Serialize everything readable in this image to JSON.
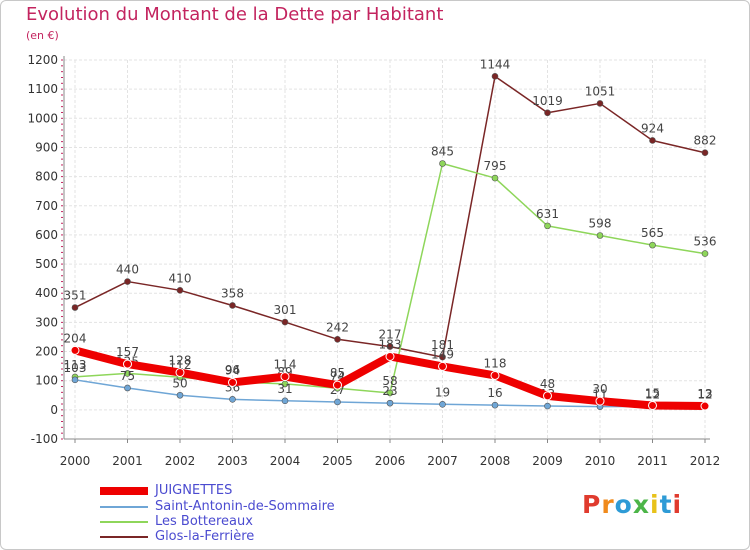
{
  "header": {
    "title": "Evolution du Montant de la Dette par Habitant",
    "unit": "(en €)"
  },
  "logo": {
    "text": "Proxiti",
    "colors": [
      "#e03b2e",
      "#f08a1c",
      "#2e9bd6",
      "#4cb548",
      "#e8c21a",
      "#2e9bd6",
      "#e03b2e"
    ]
  },
  "chart_data": {
    "type": "line",
    "title": "Evolution du Montant de la Dette par Habitant",
    "ylabel": "(en €)",
    "xlabel": "",
    "categories": [
      "2000",
      "2001",
      "2002",
      "2003",
      "2004",
      "2005",
      "2006",
      "2007",
      "2008",
      "2009",
      "2010",
      "2011",
      "2012"
    ],
    "ylim": [
      -100,
      1200
    ],
    "yticks": [
      -100,
      0,
      100,
      200,
      300,
      400,
      500,
      600,
      700,
      800,
      900,
      1000,
      1100,
      1200
    ],
    "ytick_labels": [
      "-100",
      "0",
      "100",
      "200",
      "300",
      "400",
      "500",
      "600",
      "700",
      "800",
      "900",
      "1000",
      "1100",
      "1200"
    ],
    "grid": true,
    "legend_position": "bottom-left",
    "series": [
      {
        "name": "Glos-la-Ferrière",
        "color": "#7a2626",
        "values": [
          351,
          440,
          410,
          358,
          301,
          242,
          217,
          181,
          1144,
          1019,
          1051,
          924,
          882
        ]
      },
      {
        "name": "Les Bottereaux",
        "color": "#8ed65a",
        "values": [
          113,
          125,
          112,
          96,
          89,
          74,
          58,
          845,
          795,
          631,
          598,
          565,
          536
        ]
      },
      {
        "name": "Saint-Antonin-de-Sommaire",
        "color": "#6fa6d6",
        "values": [
          103,
          75,
          50,
          36,
          31,
          27,
          23,
          19,
          16,
          13,
          11,
          12,
          12
        ]
      },
      {
        "name": "JUIGNETTES",
        "color": "#ee0000",
        "values": [
          204,
          157,
          128,
          94,
          114,
          85,
          183,
          149,
          118,
          48,
          30,
          15,
          13
        ]
      }
    ],
    "legend_order": [
      "JUIGNETTES",
      "Saint-Antonin-de-Sommaire",
      "Les Bottereaux",
      "Glos-la-Ferrière"
    ]
  }
}
